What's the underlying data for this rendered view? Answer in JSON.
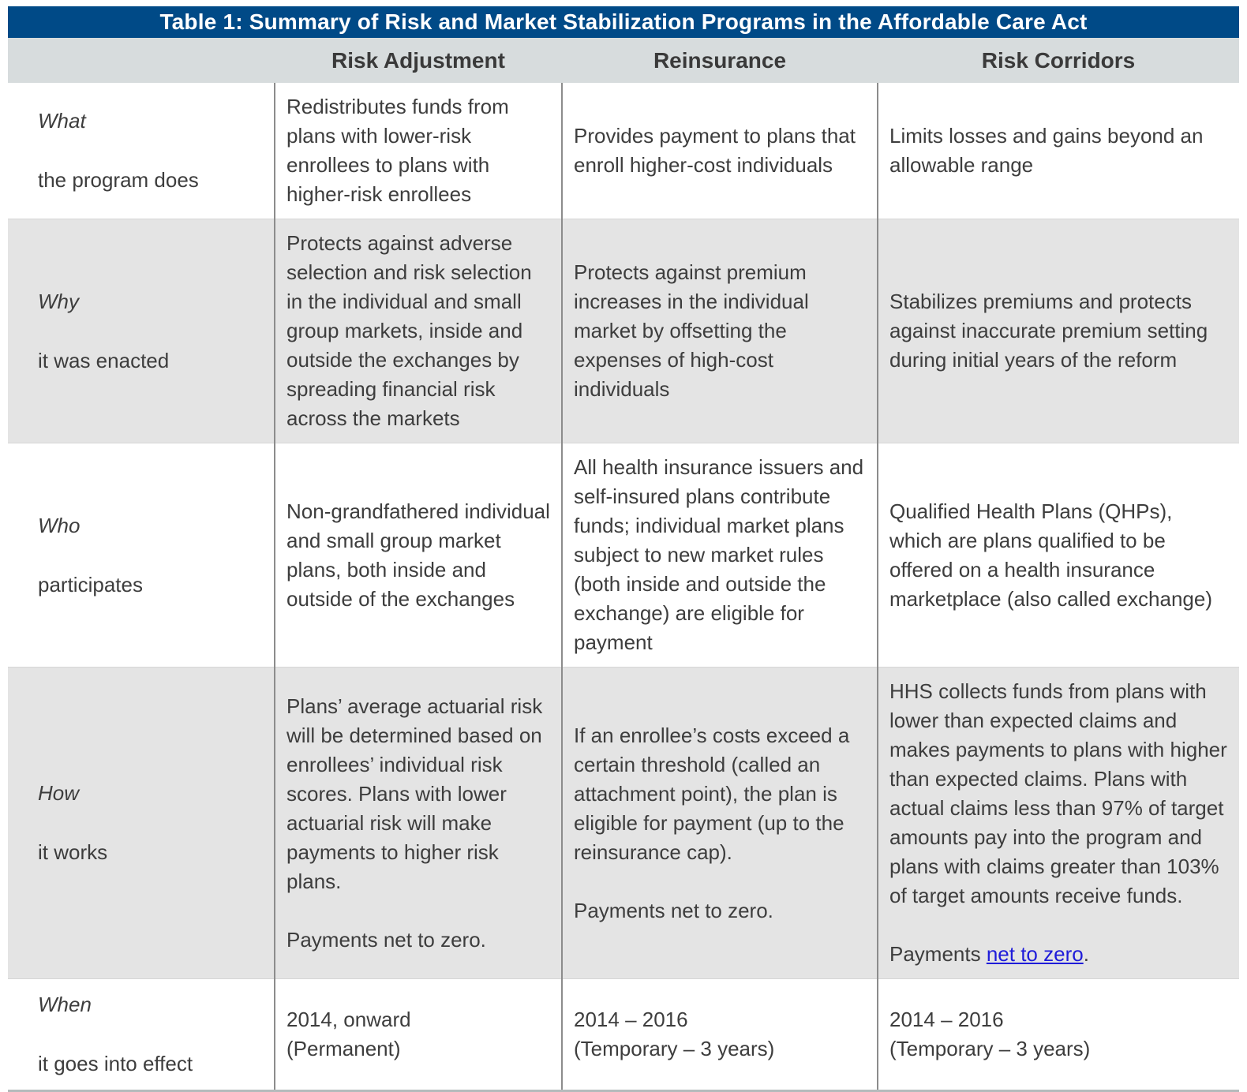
{
  "title": "Table 1: Summary of Risk and Market Stabilization Programs in the Affordable Care Act",
  "columns": [
    "",
    "Risk Adjustment",
    "Reinsurance",
    "Risk Corridors"
  ],
  "colors": {
    "title_bar_bg": "#004a87",
    "title_text": "#ffffff",
    "header_row_bg": "#d7dcdd",
    "shaded_row_bg": "#e4e4e4",
    "body_text": "#3d3d3d",
    "column_divider": "#8c8c8c",
    "bottom_border": "#b5bbbc",
    "link": "#1f1cd9"
  },
  "rows": [
    {
      "label_term": "What",
      "label_desc": "the program does",
      "shaded": false,
      "cells": [
        {
          "paragraphs": [
            "Redistributes funds from plans with lower-risk enrollees to plans with higher-risk enrollees"
          ]
        },
        {
          "paragraphs": [
            "Provides payment to plans that enroll higher-cost individuals"
          ]
        },
        {
          "paragraphs": [
            "Limits losses and gains beyond an allowable range"
          ]
        }
      ]
    },
    {
      "label_term": "Why",
      "label_desc": "it was enacted",
      "shaded": true,
      "cells": [
        {
          "paragraphs": [
            "Protects against adverse selection and risk selection in the individual and small group markets, inside and outside the exchanges by spreading financial risk across the markets"
          ]
        },
        {
          "paragraphs": [
            "Protects against premium increases in the individual market by offsetting the expenses of high-cost individuals"
          ]
        },
        {
          "paragraphs": [
            "Stabilizes premiums and protects against inaccurate premium setting during initial years of the reform"
          ]
        }
      ]
    },
    {
      "label_term": "Who",
      "label_desc": "participates",
      "shaded": false,
      "cells": [
        {
          "paragraphs": [
            "Non-grandfathered individual and small group market plans, both inside and outside of the exchanges"
          ]
        },
        {
          "paragraphs": [
            "All health insurance issuers and self-insured plans contribute funds; individual market plans subject to new market rules (both inside and outside the exchange) are eligible for payment"
          ]
        },
        {
          "paragraphs": [
            "Qualified Health Plans (QHPs), which are plans qualified to be offered on a health insurance marketplace (also called exchange)"
          ]
        }
      ]
    },
    {
      "label_term": "How",
      "label_desc": "it works",
      "shaded": true,
      "cells": [
        {
          "paragraphs": [
            "Plans’ average actuarial risk will be determined based on enrollees’ individual risk scores.  Plans with lower actuarial risk will make payments to higher risk plans.",
            "Payments net to zero."
          ]
        },
        {
          "paragraphs": [
            "If an enrollee’s costs exceed a certain threshold (called an attachment point), the plan is eligible for payment (up to the reinsurance cap).",
            "Payments net to zero."
          ]
        },
        {
          "paragraphs": [
            "HHS collects funds from plans with lower than expected claims and makes payments to plans with higher than expected claims. Plans with actual claims less than 97% of target amounts pay into the program and plans with claims greater than 103% of target amounts receive funds.",
            {
              "parts": [
                {
                  "text": "Payments "
                },
                {
                  "text": "net to zero",
                  "link": true
                },
                {
                  "text": "."
                }
              ]
            }
          ]
        }
      ]
    },
    {
      "label_term": "When",
      "label_desc": "it goes into effect",
      "shaded": false,
      "cells": [
        {
          "paragraphs": [
            "2014, onward\n(Permanent)"
          ]
        },
        {
          "paragraphs": [
            "2014 – 2016\n(Temporary – 3 years)"
          ]
        },
        {
          "paragraphs": [
            "2014 – 2016\n(Temporary – 3 years)"
          ]
        }
      ]
    }
  ]
}
